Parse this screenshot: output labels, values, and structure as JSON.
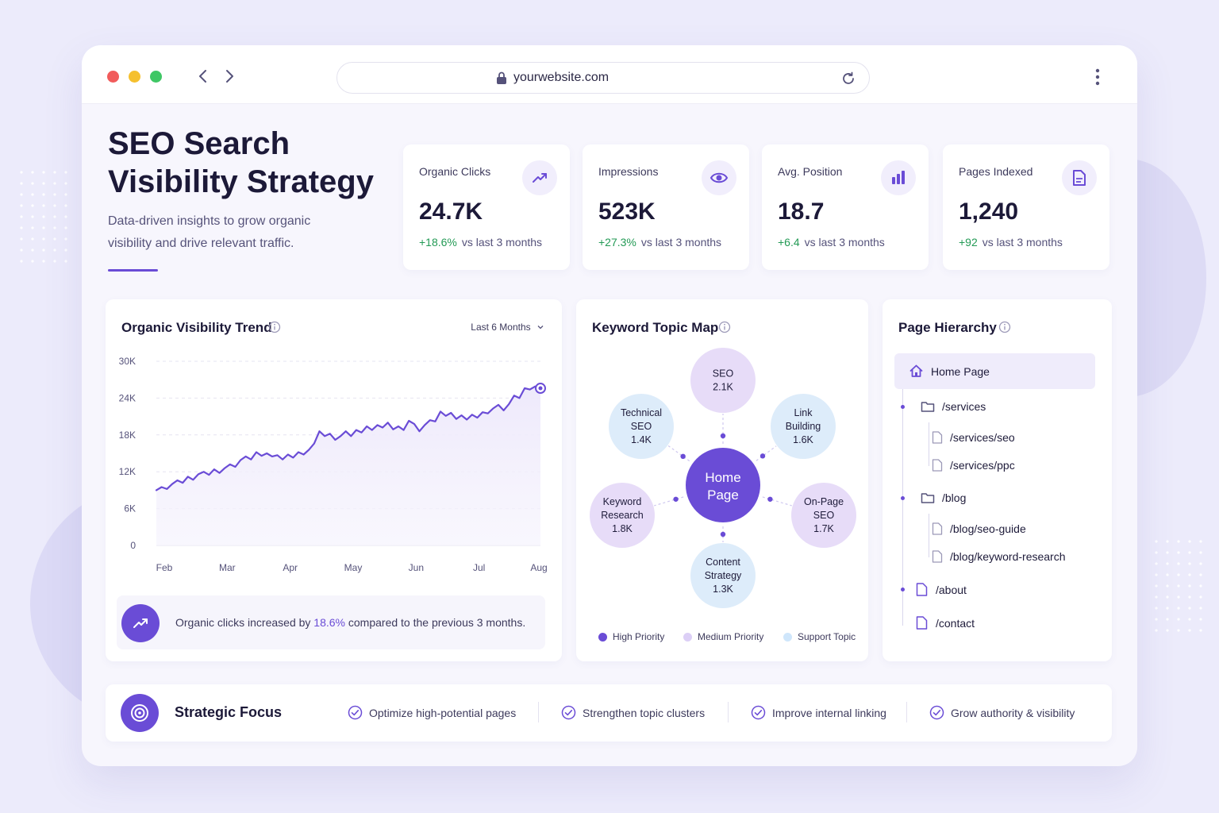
{
  "browser": {
    "url": "yourwebsite.com"
  },
  "hero": {
    "title": "SEO Search Visibility Strategy",
    "subtitle": "Data-driven insights to grow organic visibility and drive relevant traffic."
  },
  "stats": [
    {
      "label": "Organic Clicks",
      "value": "24.7K",
      "change": "+18.6%",
      "period": "vs last 3 months",
      "icon": "trending-up-icon"
    },
    {
      "label": "Impressions",
      "value": "523K",
      "change": "+27.3%",
      "period": "vs last 3 months",
      "icon": "eye-icon"
    },
    {
      "label": "Avg. Position",
      "value": "18.7",
      "change": "+6.4",
      "period": "vs last 3 months",
      "icon": "bar-chart-icon"
    },
    {
      "label": "Pages Indexed",
      "value": "1,240",
      "change": "+92",
      "period": "vs last 3 months",
      "icon": "document-icon"
    }
  ],
  "trend": {
    "title": "Organic Visibility Trend",
    "range": "Last 6 Months",
    "note_prefix": "Organic clicks increased by ",
    "note_highlight": "18.6%",
    "note_suffix": " compared to the previous 3 months."
  },
  "chart_data": {
    "type": "line",
    "title": "Organic Visibility Trend",
    "xlabel": "",
    "ylabel": "",
    "x_ticks": [
      "Feb",
      "Mar",
      "Apr",
      "May",
      "Jun",
      "Jul",
      "Aug"
    ],
    "y_ticks": [
      "0",
      "6K",
      "12K",
      "18K",
      "24K",
      "30K"
    ],
    "ylim": [
      0,
      30000
    ],
    "grid": true,
    "series": [
      {
        "values": [
          9000,
          9500,
          9200,
          10000,
          10600,
          10200,
          11200,
          10700,
          11600,
          12000,
          11500,
          12400,
          11800,
          12600,
          13200,
          12800,
          13900,
          14500,
          14000,
          15200,
          14600,
          15000,
          14500,
          14700,
          14000,
          14800,
          14300,
          15200,
          14800,
          15600,
          16600,
          18600,
          17800,
          18200,
          17200,
          17800,
          18600,
          17800,
          18800,
          18400,
          19400,
          18800,
          19600,
          19200,
          20000,
          18900,
          19400,
          18800,
          20300,
          19800,
          18600,
          19600,
          20400,
          20200,
          21800,
          21100,
          21600,
          20600,
          21200,
          20500,
          21300,
          20800,
          21700,
          21500,
          22300,
          22900,
          22000,
          23000,
          24400,
          24000,
          25600,
          25400,
          25900,
          25600
        ]
      }
    ]
  },
  "keyword_map": {
    "title": "Keyword Topic Map",
    "center": {
      "line1": "Home",
      "line2": "Page"
    },
    "nodes": [
      {
        "lines": [
          "SEO",
          "2.1K"
        ],
        "priority": "medium"
      },
      {
        "lines": [
          "Link",
          "Building",
          "1.6K"
        ],
        "priority": "support"
      },
      {
        "lines": [
          "On-Page",
          "SEO",
          "1.7K"
        ],
        "priority": "medium"
      },
      {
        "lines": [
          "Content",
          "Strategy",
          "1.3K"
        ],
        "priority": "support"
      },
      {
        "lines": [
          "Keyword",
          "Research",
          "1.8K"
        ],
        "priority": "medium"
      },
      {
        "lines": [
          "Technical",
          "SEO",
          "1.4K"
        ],
        "priority": "support"
      }
    ],
    "legend": [
      {
        "label": "High Priority",
        "color": "#6a4cd6"
      },
      {
        "label": "Medium Priority",
        "color": "#d9cdf5"
      },
      {
        "label": "Support Topic",
        "color": "#cfe6fb"
      }
    ]
  },
  "hierarchy": {
    "title": "Page Hierarchy",
    "home": "Home Page",
    "items": [
      {
        "label": "/services",
        "type": "folder"
      },
      {
        "label": "/services/seo",
        "type": "file"
      },
      {
        "label": "/services/ppc",
        "type": "file"
      },
      {
        "label": "/blog",
        "type": "folder"
      },
      {
        "label": "/blog/seo-guide",
        "type": "file"
      },
      {
        "label": "/blog/keyword-research",
        "type": "file"
      },
      {
        "label": "/about",
        "type": "page"
      },
      {
        "label": "/contact",
        "type": "page"
      }
    ]
  },
  "focus": {
    "title": "Strategic Focus",
    "items": [
      "Optimize high-potential pages",
      "Strengthen topic clusters",
      "Improve internal linking",
      "Grow authority & visibility"
    ]
  },
  "colors": {
    "accent": "#6a4cd6",
    "positive": "#239a55",
    "medium_node": "#e7dcf8",
    "support_node": "#ddecfa"
  }
}
